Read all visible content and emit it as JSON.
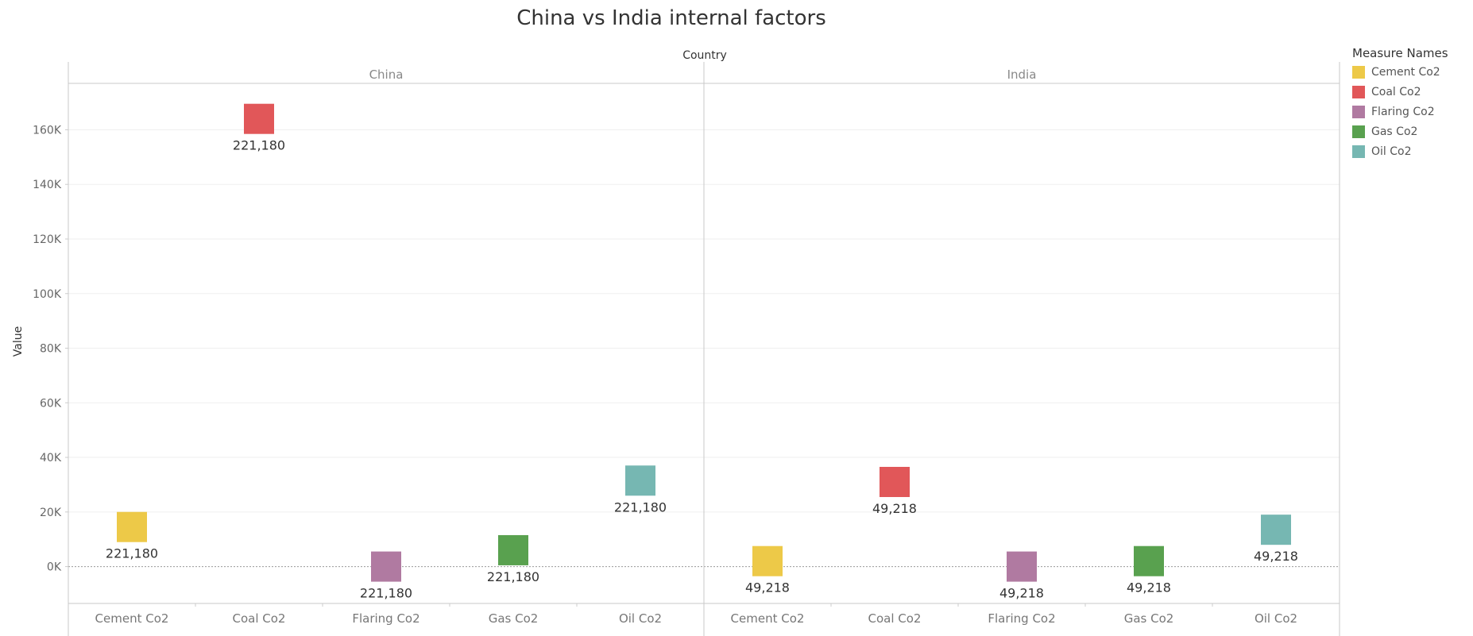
{
  "chart_data": {
    "type": "scatter",
    "mark": "square",
    "title": "China vs India internal factors",
    "column_header": "Country",
    "ylabel": "Value",
    "ylim": [
      -13500,
      177000
    ],
    "y_ticks": [
      0,
      20000,
      40000,
      60000,
      80000,
      100000,
      120000,
      140000,
      160000
    ],
    "y_tick_labels": [
      "0K",
      "20K",
      "40K",
      "60K",
      "80K",
      "100K",
      "120K",
      "140K",
      "160K"
    ],
    "categories": [
      "Cement Co2",
      "Coal Co2",
      "Flaring Co2",
      "Gas Co2",
      "Oil Co2"
    ],
    "grid": true,
    "legend": {
      "title": "Measure Names",
      "placement": "right",
      "items": [
        {
          "label": "Cement Co2",
          "color": "#EDC948"
        },
        {
          "label": "Coal Co2",
          "color": "#E15759"
        },
        {
          "label": "Flaring Co2",
          "color": "#B07AA1"
        },
        {
          "label": "Gas Co2",
          "color": "#59A14F"
        },
        {
          "label": "Oil Co2",
          "color": "#76B7B2"
        }
      ]
    },
    "panels": [
      {
        "name": "China",
        "points": [
          {
            "category": "Cement Co2",
            "value": 14500,
            "label": "221,180",
            "color": "#EDC948"
          },
          {
            "category": "Coal Co2",
            "value": 164000,
            "label": "221,180",
            "color": "#E15759"
          },
          {
            "category": "Flaring Co2",
            "value": 0,
            "label": "221,180",
            "color": "#B07AA1"
          },
          {
            "category": "Gas Co2",
            "value": 6000,
            "label": "221,180",
            "color": "#59A14F"
          },
          {
            "category": "Oil Co2",
            "value": 31500,
            "label": "221,180",
            "color": "#76B7B2"
          }
        ]
      },
      {
        "name": "India",
        "points": [
          {
            "category": "Cement Co2",
            "value": 2000,
            "label": "49,218",
            "color": "#EDC948"
          },
          {
            "category": "Coal Co2",
            "value": 31000,
            "label": "49,218",
            "color": "#E15759"
          },
          {
            "category": "Flaring Co2",
            "value": 0,
            "label": "49,218",
            "color": "#B07AA1"
          },
          {
            "category": "Gas Co2",
            "value": 2000,
            "label": "49,218",
            "color": "#59A14F"
          },
          {
            "category": "Oil Co2",
            "value": 13500,
            "label": "49,218",
            "color": "#76B7B2"
          }
        ]
      }
    ]
  }
}
